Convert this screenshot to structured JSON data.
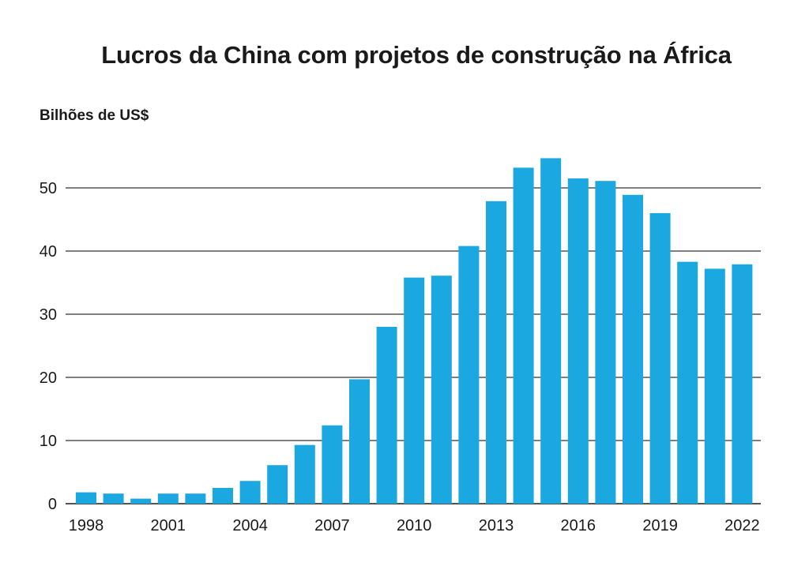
{
  "chart_data": {
    "type": "bar",
    "title": "Lucros da China com projetos de construção na África",
    "ylabel": "Bilhões de US$",
    "xlabel": "",
    "categories": [
      "1998",
      "1999",
      "2000",
      "2001",
      "2002",
      "2003",
      "2004",
      "2005",
      "2006",
      "2007",
      "2008",
      "2009",
      "2010",
      "2011",
      "2012",
      "2013",
      "2014",
      "2015",
      "2016",
      "2017",
      "2018",
      "2019",
      "2020",
      "2021",
      "2022"
    ],
    "values": [
      1.8,
      1.6,
      0.8,
      1.6,
      1.6,
      2.5,
      3.6,
      6.1,
      9.3,
      12.4,
      19.7,
      28.0,
      35.8,
      36.1,
      40.8,
      47.9,
      53.2,
      54.7,
      51.5,
      51.1,
      48.9,
      46.0,
      38.3,
      37.2,
      37.9
    ],
    "xticks": [
      "1998",
      "2001",
      "2004",
      "2007",
      "2010",
      "2013",
      "2016",
      "2019",
      "2022"
    ],
    "yticks": [
      "0",
      "10",
      "20",
      "30",
      "40",
      "50"
    ],
    "ylim": [
      0,
      57
    ],
    "grid": true,
    "bar_color": "#1ba8e0"
  }
}
